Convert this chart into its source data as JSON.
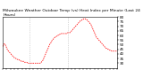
{
  "title": "Milwaukee Weather Outdoor Temp (vs) Heat Index per Minute (Last 24 Hours)",
  "background_color": "#ffffff",
  "line_color": "#ff0000",
  "ylim": [
    25,
    80
  ],
  "xlim": [
    0,
    143
  ],
  "yticks": [
    30,
    35,
    40,
    45,
    50,
    55,
    60,
    65,
    70,
    75,
    80
  ],
  "y_values": [
    48,
    50,
    51,
    50,
    48,
    46,
    44,
    43,
    42,
    41,
    40,
    39,
    38,
    37,
    36,
    36,
    35,
    35,
    34,
    34,
    34,
    33,
    33,
    32,
    32,
    32,
    32,
    31,
    31,
    31,
    31,
    30,
    30,
    30,
    30,
    30,
    30,
    30,
    30,
    30,
    30,
    30,
    30,
    30,
    30,
    30,
    30,
    30,
    31,
    32,
    33,
    35,
    37,
    39,
    41,
    43,
    45,
    47,
    49,
    51,
    52,
    54,
    55,
    56,
    57,
    58,
    58,
    59,
    60,
    60,
    61,
    61,
    62,
    62,
    62,
    62,
    62,
    62,
    62,
    62,
    62,
    63,
    63,
    63,
    63,
    64,
    65,
    66,
    67,
    68,
    69,
    70,
    71,
    72,
    73,
    74,
    75,
    76,
    76,
    77,
    77,
    78,
    78,
    78,
    77,
    77,
    76,
    75,
    74,
    73,
    72,
    70,
    68,
    66,
    64,
    62,
    60,
    58,
    57,
    56,
    55,
    54,
    53,
    52,
    51,
    50,
    49,
    48,
    47,
    46,
    46,
    45,
    45,
    44,
    44,
    44,
    43,
    43,
    43,
    43,
    43,
    43,
    43,
    43
  ],
  "vlines_x": [
    33,
    81
  ],
  "tick_fontsize": 3.0,
  "title_fontsize": 3.2,
  "n_xticks": 30
}
